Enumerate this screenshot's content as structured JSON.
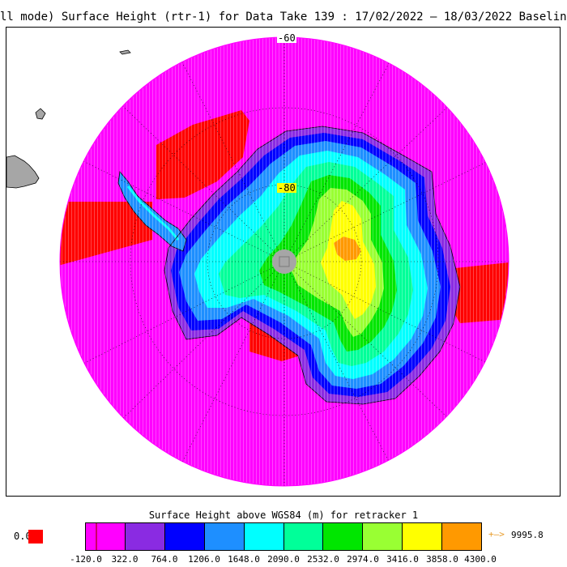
{
  "title": "ll mode) Surface Height (rtr-1) for Data Take 139 : 17/02/2022 – 18/03/2022 Baseline-",
  "map": {
    "projection": "south-polar-stereographic",
    "lat_labels": [
      "-60",
      "-80"
    ],
    "colors": {
      "ocean": "#ff00ff",
      "missing": "#ff0000",
      "land": "#a6a6a6",
      "pole_hole": "#a6a6a6",
      "graticule": "#000000"
    }
  },
  "colorbar": {
    "title": "Surface Height above WGS84 (m) for retracker 1",
    "colors": [
      "#ff00ff",
      "#8a2be2",
      "#0000ff",
      "#1e8fff",
      "#00ffff",
      "#00ff99",
      "#00e600",
      "#99ff33",
      "#ffff00",
      "#ff9900"
    ],
    "ticks": [
      "-120.0",
      "322.0",
      "764.0",
      "1206.0",
      "1648.0",
      "2090.0",
      "2532.0",
      "2974.0",
      "3416.0",
      "3858.0",
      "4300.0"
    ],
    "underflow_marker_color": "#cc0066",
    "missing_label": "0.0",
    "missing_color": "#ff0000",
    "overflow_arrow": "+–>",
    "overflow_value": "9995.8"
  }
}
